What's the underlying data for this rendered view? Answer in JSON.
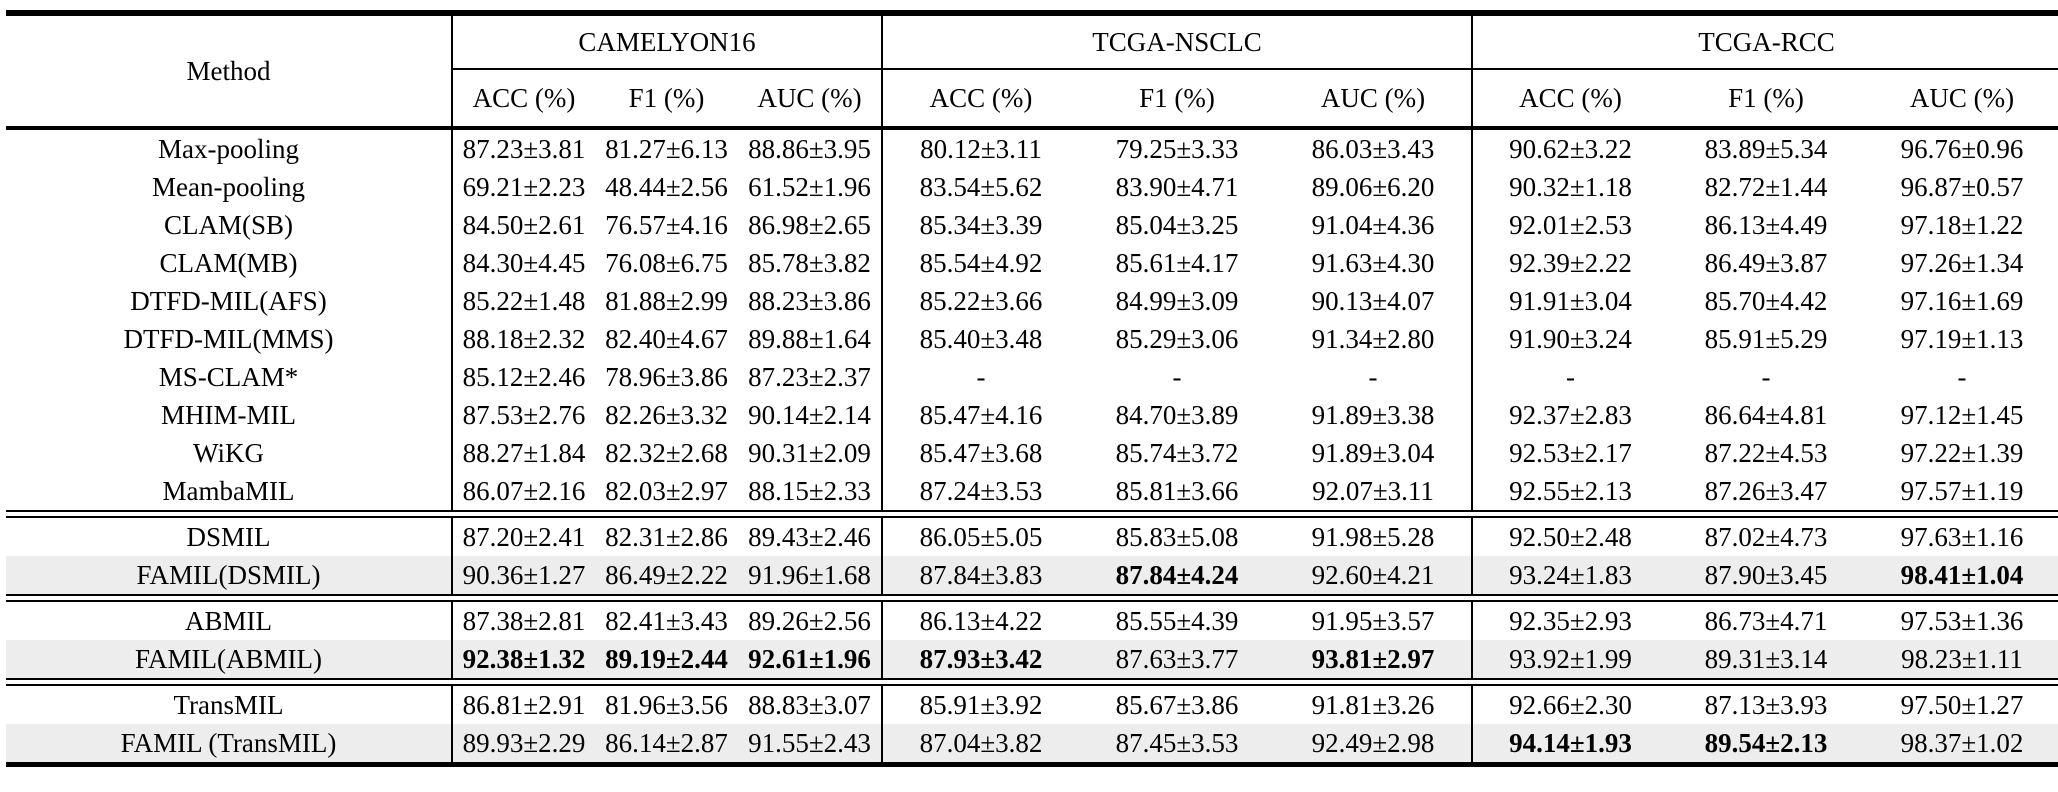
{
  "table": {
    "header": {
      "method_label": "Method",
      "groups": [
        {
          "label": "CAMELYON16",
          "cols": [
            "ACC (%)",
            "F1 (%)",
            "AUC (%)"
          ]
        },
        {
          "label": "TCGA-NSCLC",
          "cols": [
            "ACC (%)",
            "F1 (%)",
            "AUC (%)"
          ]
        },
        {
          "label": "TCGA-RCC",
          "cols": [
            "ACC (%)",
            "F1 (%)",
            "AUC (%)"
          ]
        }
      ]
    },
    "sections": [
      {
        "rows": [
          {
            "method": "Max-pooling",
            "highlight": false,
            "bold": [],
            "values": [
              "87.23±3.81",
              "81.27±6.13",
              "88.86±3.95",
              "80.12±3.11",
              "79.25±3.33",
              "86.03±3.43",
              "90.62±3.22",
              "83.89±5.34",
              "96.76±0.96"
            ]
          },
          {
            "method": "Mean-pooling",
            "highlight": false,
            "bold": [],
            "values": [
              "69.21±2.23",
              "48.44±2.56",
              "61.52±1.96",
              "83.54±5.62",
              "83.90±4.71",
              "89.06±6.20",
              "90.32±1.18",
              "82.72±1.44",
              "96.87±0.57"
            ]
          },
          {
            "method": "CLAM(SB)",
            "highlight": false,
            "bold": [],
            "values": [
              "84.50±2.61",
              "76.57±4.16",
              "86.98±2.65",
              "85.34±3.39",
              "85.04±3.25",
              "91.04±4.36",
              "92.01±2.53",
              "86.13±4.49",
              "97.18±1.22"
            ]
          },
          {
            "method": "CLAM(MB)",
            "highlight": false,
            "bold": [],
            "values": [
              "84.30±4.45",
              "76.08±6.75",
              "85.78±3.82",
              "85.54±4.92",
              "85.61±4.17",
              "91.63±4.30",
              "92.39±2.22",
              "86.49±3.87",
              "97.26±1.34"
            ]
          },
          {
            "method": "DTFD-MIL(AFS)",
            "highlight": false,
            "bold": [],
            "values": [
              "85.22±1.48",
              "81.88±2.99",
              "88.23±3.86",
              "85.22±3.66",
              "84.99±3.09",
              "90.13±4.07",
              "91.91±3.04",
              "85.70±4.42",
              "97.16±1.69"
            ]
          },
          {
            "method": "DTFD-MIL(MMS)",
            "highlight": false,
            "bold": [],
            "values": [
              "88.18±2.32",
              "82.40±4.67",
              "89.88±1.64",
              "85.40±3.48",
              "85.29±3.06",
              "91.34±2.80",
              "91.90±3.24",
              "85.91±5.29",
              "97.19±1.13"
            ]
          },
          {
            "method": "MS-CLAM*",
            "highlight": false,
            "bold": [],
            "values": [
              "85.12±2.46",
              "78.96±3.86",
              "87.23±2.37",
              "-",
              "-",
              "-",
              "-",
              "-",
              "-"
            ]
          },
          {
            "method": "MHIM-MIL",
            "highlight": false,
            "bold": [],
            "values": [
              "87.53±2.76",
              "82.26±3.32",
              "90.14±2.14",
              "85.47±4.16",
              "84.70±3.89",
              "91.89±3.38",
              "92.37±2.83",
              "86.64±4.81",
              "97.12±1.45"
            ]
          },
          {
            "method": "WiKG",
            "highlight": false,
            "bold": [],
            "values": [
              "88.27±1.84",
              "82.32±2.68",
              "90.31±2.09",
              "85.47±3.68",
              "85.74±3.72",
              "91.89±3.04",
              "92.53±2.17",
              "87.22±4.53",
              "97.22±1.39"
            ]
          },
          {
            "method": "MambaMIL",
            "highlight": false,
            "bold": [],
            "values": [
              "86.07±2.16",
              "82.03±2.97",
              "88.15±2.33",
              "87.24±3.53",
              "85.81±3.66",
              "92.07±3.11",
              "92.55±2.13",
              "87.26±3.47",
              "97.57±1.19"
            ]
          }
        ]
      },
      {
        "rows": [
          {
            "method": "DSMIL",
            "highlight": false,
            "bold": [],
            "values": [
              "87.20±2.41",
              "82.31±2.86",
              "89.43±2.46",
              "86.05±5.05",
              "85.83±5.08",
              "91.98±5.28",
              "92.50±2.48",
              "87.02±4.73",
              "97.63±1.16"
            ]
          },
          {
            "method": "FAMIL(DSMIL)",
            "highlight": true,
            "bold": [
              4,
              8
            ],
            "values": [
              "90.36±1.27",
              "86.49±2.22",
              "91.96±1.68",
              "87.84±3.83",
              "87.84±4.24",
              "92.60±4.21",
              "93.24±1.83",
              "87.90±3.45",
              "98.41±1.04"
            ]
          }
        ]
      },
      {
        "rows": [
          {
            "method": "ABMIL",
            "highlight": false,
            "bold": [],
            "values": [
              "87.38±2.81",
              "82.41±3.43",
              "89.26±2.56",
              "86.13±4.22",
              "85.55±4.39",
              "91.95±3.57",
              "92.35±2.93",
              "86.73±4.71",
              "97.53±1.36"
            ]
          },
          {
            "method": "FAMIL(ABMIL)",
            "highlight": true,
            "bold": [
              0,
              1,
              2,
              3,
              5
            ],
            "values": [
              "92.38±1.32",
              "89.19±2.44",
              "92.61±1.96",
              "87.93±3.42",
              "87.63±3.77",
              "93.81±2.97",
              "93.92±1.99",
              "89.31±3.14",
              "98.23±1.11"
            ]
          }
        ]
      },
      {
        "rows": [
          {
            "method": "TransMIL",
            "highlight": false,
            "bold": [],
            "values": [
              "86.81±2.91",
              "81.96±3.56",
              "88.83±3.07",
              "85.91±3.92",
              "85.67±3.86",
              "91.81±3.26",
              "92.66±2.30",
              "87.13±3.93",
              "97.50±1.27"
            ]
          },
          {
            "method": "FAMIL (TransMIL)",
            "highlight": true,
            "bold": [
              6,
              7
            ],
            "values": [
              "89.93±2.29",
              "86.14±2.87",
              "91.55±2.43",
              "87.04±3.82",
              "87.45±3.53",
              "92.49±2.98",
              "94.14±1.93",
              "89.54±2.13",
              "98.37±1.02"
            ]
          }
        ]
      }
    ]
  }
}
